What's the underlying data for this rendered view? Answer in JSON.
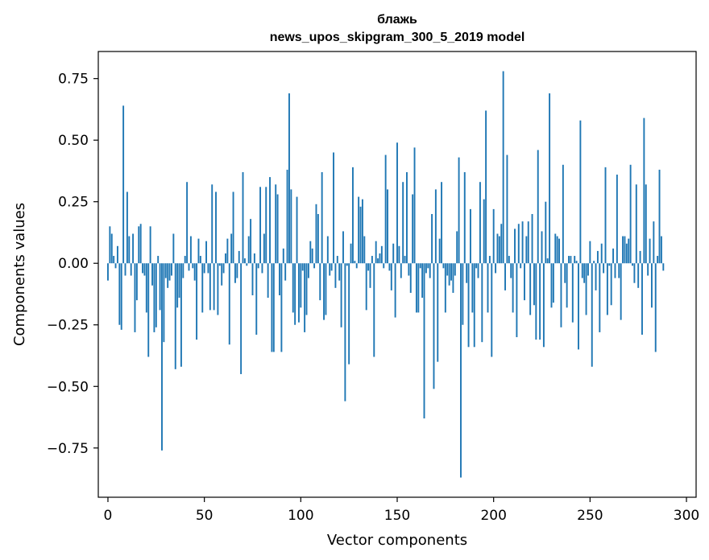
{
  "chart_data": {
    "type": "bar",
    "title_line1": "блажь",
    "title_line2": "news_upos_skipgram_300_5_2019 model",
    "xlabel": "Vector components",
    "ylabel": "Components values",
    "xlim": [
      -5,
      305
    ],
    "ylim": [
      -0.95,
      0.86
    ],
    "xticks": [
      0,
      50,
      100,
      150,
      200,
      250,
      300
    ],
    "xtick_labels": [
      "0",
      "50",
      "100",
      "150",
      "200",
      "250",
      "300"
    ],
    "yticks": [
      -0.75,
      -0.5,
      -0.25,
      0.0,
      0.25,
      0.5,
      0.75
    ],
    "ytick_labels": [
      "−0.75",
      "−0.50",
      "−0.25",
      "0.00",
      "0.25",
      "0.50",
      "0.75"
    ],
    "bar_color": "#1f77b4",
    "values": [
      -0.07,
      0.15,
      0.12,
      0.03,
      -0.02,
      0.07,
      -0.25,
      -0.27,
      0.64,
      -0.05,
      0.29,
      0.11,
      -0.05,
      0.12,
      -0.28,
      -0.15,
      0.15,
      0.16,
      -0.04,
      -0.05,
      -0.2,
      -0.38,
      0.15,
      -0.09,
      -0.28,
      -0.26,
      0.03,
      -0.19,
      -0.76,
      -0.32,
      -0.06,
      -0.1,
      -0.07,
      -0.05,
      0.12,
      -0.43,
      -0.18,
      -0.14,
      -0.42,
      -0.06,
      0.03,
      0.33,
      -0.03,
      0.11,
      -0.02,
      -0.07,
      -0.31,
      0.1,
      0.03,
      -0.2,
      -0.04,
      0.09,
      -0.04,
      -0.19,
      0.32,
      -0.19,
      0.29,
      -0.21,
      -0.01,
      -0.09,
      -0.04,
      0.04,
      0.1,
      -0.33,
      0.12,
      0.29,
      -0.08,
      -0.06,
      0.05,
      -0.45,
      0.37,
      0.02,
      -0.01,
      0.11,
      0.18,
      -0.13,
      0.04,
      -0.29,
      -0.02,
      0.31,
      -0.04,
      0.12,
      0.31,
      -0.14,
      0.35,
      -0.36,
      -0.36,
      0.32,
      0.28,
      -0.13,
      -0.36,
      0.06,
      -0.07,
      0.38,
      0.69,
      0.3,
      -0.2,
      -0.25,
      0.27,
      -0.24,
      -0.18,
      -0.03,
      -0.28,
      -0.21,
      -0.06,
      0.09,
      0.06,
      -0.02,
      0.24,
      0.2,
      -0.15,
      0.37,
      -0.23,
      -0.21,
      0.11,
      -0.05,
      -0.03,
      0.45,
      -0.1,
      0.03,
      -0.07,
      -0.26,
      0.13,
      -0.56,
      -0.01,
      -0.41,
      0.08,
      0.39,
      0.01,
      -0.02,
      0.27,
      0.23,
      0.26,
      0.11,
      -0.19,
      -0.03,
      -0.1,
      0.03,
      -0.38,
      0.09,
      0.02,
      0.04,
      0.07,
      -0.02,
      0.44,
      0.3,
      -0.03,
      -0.11,
      0.08,
      -0.22,
      0.49,
      0.07,
      -0.06,
      0.33,
      0.03,
      0.37,
      -0.05,
      -0.12,
      0.28,
      0.47,
      -0.2,
      -0.2,
      -0.02,
      -0.14,
      -0.63,
      -0.04,
      -0.02,
      -0.06,
      0.2,
      -0.51,
      0.3,
      -0.4,
      0.1,
      0.33,
      -0.02,
      -0.2,
      -0.05,
      -0.09,
      -0.07,
      -0.12,
      -0.05,
      0.13,
      0.43,
      -0.87,
      -0.25,
      0.37,
      -0.08,
      -0.34,
      0.22,
      -0.2,
      -0.34,
      -0.02,
      -0.06,
      0.33,
      -0.32,
      0.26,
      0.62,
      -0.2,
      0.03,
      -0.38,
      0.22,
      -0.04,
      0.12,
      0.11,
      0.16,
      0.78,
      -0.11,
      0.44,
      0.03,
      -0.06,
      -0.2,
      0.14,
      -0.3,
      0.16,
      -0.02,
      0.17,
      -0.15,
      0.11,
      0.17,
      -0.21,
      0.2,
      -0.17,
      -0.31,
      0.46,
      -0.31,
      0.13,
      -0.34,
      0.25,
      0.02,
      0.69,
      -0.18,
      -0.16,
      0.12,
      0.11,
      0.1,
      -0.26,
      0.4,
      -0.08,
      -0.18,
      0.03,
      0.03,
      -0.24,
      0.03,
      0.01,
      -0.35,
      0.58,
      -0.06,
      -0.08,
      -0.21,
      -0.05,
      0.09,
      -0.42,
      0.01,
      -0.11,
      0.05,
      -0.28,
      0.08,
      -0.04,
      0.39,
      -0.21,
      -0.01,
      -0.17,
      0.06,
      -0.06,
      0.36,
      -0.06,
      -0.23,
      0.11,
      0.11,
      0.08,
      0.1,
      0.4,
      -0.01,
      -0.08,
      0.32,
      -0.1,
      0.05,
      -0.29,
      0.59,
      0.32,
      -0.05,
      0.1,
      -0.18,
      0.17,
      -0.36,
      0.03,
      0.38,
      0.11,
      -0.03
    ]
  }
}
